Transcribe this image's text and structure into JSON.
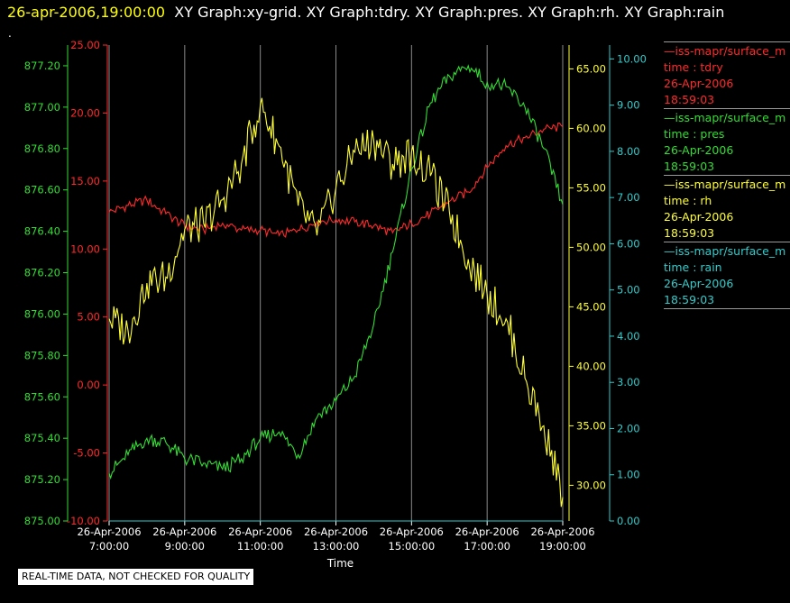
{
  "header": {
    "date_label": "26-apr-2006,19:00:00",
    "graphs_label": "XY Graph:xy-grid.  XY Graph:tdry.  XY Graph:pres.  XY Graph:rh.  XY Graph:rain"
  },
  "dot": ".",
  "footer": {
    "quality_note": "REAL-TIME DATA, NOT CHECKED FOR QUALITY"
  },
  "legend": [
    {
      "series": "—iss-mapr/surface_m",
      "name": "time : tdry",
      "date": "26-Apr-2006",
      "time": "18:59:03",
      "color": "#ff2a2a"
    },
    {
      "series": "—iss-mapr/surface_m",
      "name": "time : pres",
      "date": "26-Apr-2006",
      "time": "18:59:03",
      "color": "#33dd33"
    },
    {
      "series": "—iss-mapr/surface_m",
      "name": "time : rh",
      "date": "26-Apr-2006",
      "time": "18:59:03",
      "color": "#ffff33"
    },
    {
      "series": "—iss-mapr/surface_m",
      "name": "time : rain",
      "date": "26-Apr-2006",
      "time": "18:59:03",
      "color": "#33cccc"
    }
  ],
  "chart_data": {
    "type": "line",
    "grid": "vertical",
    "xlabel": "Time",
    "x_ticks": [
      {
        "t": 7,
        "line1": "26-Apr-2006",
        "line2": "7:00:00"
      },
      {
        "t": 9,
        "line1": "26-Apr-2006",
        "line2": "9:00:00"
      },
      {
        "t": 11,
        "line1": "26-Apr-2006",
        "line2": "11:00:00"
      },
      {
        "t": 13,
        "line1": "26-Apr-2006",
        "line2": "13:00:00"
      },
      {
        "t": 15,
        "line1": "26-Apr-2006",
        "line2": "15:00:00"
      },
      {
        "t": 17,
        "line1": "26-Apr-2006",
        "line2": "17:00:00"
      },
      {
        "t": 19,
        "line1": "26-Apr-2006",
        "line2": "19:00:00"
      }
    ],
    "xlim": [
      "26-Apr-2006 7:00",
      "26-Apr-2006 19:00"
    ],
    "axes": [
      {
        "id": "pres",
        "side": "left-outer",
        "color": "#33dd33",
        "ylim": [
          875.0,
          877.3
        ],
        "ticks": [
          "875.00",
          "875.20",
          "875.40",
          "875.60",
          "875.80",
          "876.00",
          "876.20",
          "876.40",
          "876.60",
          "876.80",
          "877.00",
          "877.20"
        ]
      },
      {
        "id": "tdry",
        "side": "left-inner",
        "color": "#ff2a2a",
        "ylim": [
          -10,
          25
        ],
        "ticks": [
          "-10.00",
          "-5.00",
          "0.00",
          "5.00",
          "10.00",
          "15.00",
          "20.00",
          "25.00"
        ]
      },
      {
        "id": "rh",
        "side": "right-inner",
        "color": "#ffff33",
        "ylim": [
          27,
          67
        ],
        "ticks": [
          "30.00",
          "35.00",
          "40.00",
          "45.00",
          "50.00",
          "55.00",
          "60.00",
          "65.00"
        ]
      },
      {
        "id": "rain",
        "side": "right-outer",
        "color": "#33cccc",
        "ylim": [
          0,
          10.3
        ],
        "ticks": [
          "0.00",
          "1.00",
          "2.00",
          "3.00",
          "4.00",
          "5.00",
          "6.00",
          "7.00",
          "8.00",
          "9.00",
          "10.00"
        ]
      }
    ],
    "series": [
      {
        "name": "tdry",
        "axis": "tdry",
        "color": "#ff2a2a",
        "x": [
          "7:00",
          "7:30",
          "8:00",
          "8:30",
          "9:00",
          "9:30",
          "10:00",
          "10:30",
          "11:00",
          "11:30",
          "12:00",
          "12:30",
          "13:00",
          "13:30",
          "14:00",
          "14:30",
          "15:00",
          "15:30",
          "16:00",
          "16:30",
          "17:00",
          "17:30",
          "18:00",
          "18:30",
          "19:00"
        ],
        "y": [
          12.7,
          13.2,
          13.6,
          12.6,
          11.7,
          11.4,
          11.9,
          11.4,
          11.4,
          11.0,
          11.4,
          12.0,
          12.2,
          12.0,
          11.7,
          11.2,
          11.9,
          12.6,
          13.5,
          14.2,
          16.0,
          17.6,
          18.2,
          18.8,
          19.0
        ]
      },
      {
        "name": "pres",
        "axis": "pres",
        "color": "#33dd33",
        "x": [
          "7:00",
          "7:30",
          "8:00",
          "8:30",
          "9:00",
          "9:30",
          "10:00",
          "10:30",
          "11:00",
          "11:30",
          "12:00",
          "12:30",
          "13:00",
          "13:30",
          "14:00",
          "14:30",
          "15:00",
          "15:30",
          "16:00",
          "16:30",
          "17:00",
          "17:30",
          "18:00",
          "18:30",
          "19:00"
        ],
        "y": [
          875.23,
          875.32,
          875.4,
          875.38,
          875.3,
          875.28,
          875.25,
          875.3,
          875.4,
          875.43,
          875.32,
          875.5,
          875.58,
          875.7,
          875.95,
          876.3,
          876.7,
          877.02,
          877.15,
          877.2,
          877.12,
          877.1,
          877.0,
          876.8,
          876.53
        ]
      },
      {
        "name": "rh",
        "axis": "rh",
        "color": "#ffff33",
        "x": [
          "7:00",
          "7:30",
          "8:00",
          "8:30",
          "9:00",
          "9:30",
          "10:00",
          "10:30",
          "11:00",
          "11:30",
          "12:00",
          "12:30",
          "13:00",
          "13:30",
          "14:00",
          "14:30",
          "15:00",
          "15:30",
          "16:00",
          "16:30",
          "17:00",
          "17:30",
          "18:00",
          "18:30",
          "19:00"
        ],
        "y": [
          44,
          43,
          47,
          47.5,
          51.5,
          52,
          54,
          57,
          62,
          58.5,
          53.5,
          51,
          55,
          58,
          59,
          57,
          58,
          56,
          53,
          49,
          46,
          44,
          39,
          35,
          29
        ]
      },
      {
        "name": "rain",
        "axis": "rain",
        "color": "#33cccc",
        "x": [
          "7:00",
          "19:00"
        ],
        "y": [
          0,
          0
        ]
      }
    ]
  }
}
